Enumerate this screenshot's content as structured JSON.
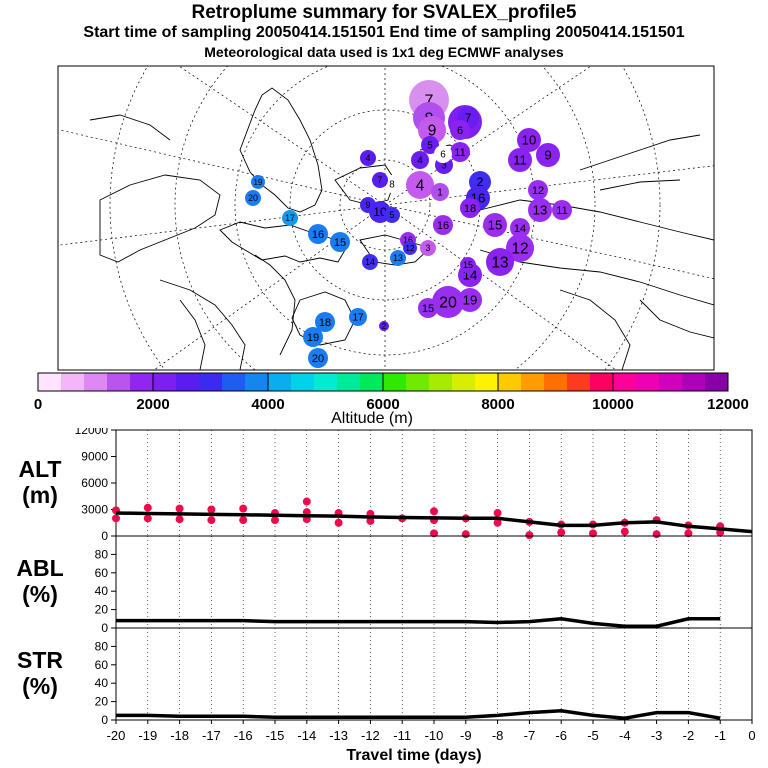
{
  "header": {
    "title": "Retroplume summary for SVALEX_profile5",
    "line2": "Start time of sampling 20050414.151501     End time of sampling 20050414.151501",
    "line3": "Meteorological data used is 1x1 deg ECMWF analyses"
  },
  "colorbar": {
    "label": "Altitude (m)",
    "ticks": [
      "0",
      "2000",
      "4000",
      "6000",
      "8000",
      "10000",
      "12000"
    ],
    "colors": [
      "#ffe4ff",
      "#f3b6f8",
      "#dd88f3",
      "#b955ee",
      "#9026f0",
      "#7d1ff0",
      "#5a1df0",
      "#3b2bf0",
      "#1f5df0",
      "#1486f0",
      "#0aaef0",
      "#00d2ea",
      "#00ebd1",
      "#00ea9b",
      "#00e95b",
      "#2fea00",
      "#6fea00",
      "#a7ec00",
      "#d8ee00",
      "#fdf300",
      "#ffc900",
      "#ff9d00",
      "#ff7000",
      "#ff3b1f",
      "#ff0060",
      "#ff0099",
      "#ee00b2",
      "#d000bc",
      "#ad00b8",
      "#8a00a8"
    ]
  },
  "map": {
    "markers": [
      {
        "label": "7",
        "color": "#d890ef"
      },
      {
        "label": "8",
        "color": "#b04fee"
      },
      {
        "label": "9",
        "color": "#c45bee"
      },
      {
        "label": "7",
        "color": "#8020f0"
      },
      {
        "label": "7",
        "color": "#6a1df0"
      },
      {
        "label": "6",
        "color": "#8a22f0"
      },
      {
        "label": "10",
        "color": "#8a22f0"
      },
      {
        "label": "9",
        "color": "#8a22f0"
      },
      {
        "label": "11",
        "color": "#8a22f0"
      },
      {
        "label": "5",
        "color": "#6a1df0"
      },
      {
        "label": "4",
        "color": "#6a1df0"
      },
      {
        "label": "11",
        "color": "#8a22f0"
      },
      {
        "label": "3",
        "color": "#6a1df0"
      },
      {
        "label": "4",
        "color": "#c45bee"
      },
      {
        "label": "1",
        "color": "#b04fee"
      },
      {
        "label": "2",
        "color": "#3f2ef0"
      },
      {
        "label": "16",
        "color": "#4a24f0"
      },
      {
        "label": "12",
        "color": "#9a2ef0"
      },
      {
        "label": "13",
        "color": "#9a2ef0"
      },
      {
        "label": "11",
        "color": "#9a2ef0"
      },
      {
        "label": "18",
        "color": "#8a22f0"
      },
      {
        "label": "15",
        "color": "#9a2ef0"
      },
      {
        "label": "14",
        "color": "#9a2ef0"
      },
      {
        "label": "12",
        "color": "#9a2ef0"
      },
      {
        "label": "16",
        "color": "#9a2ef0"
      },
      {
        "label": "13",
        "color": "#8a22f0"
      },
      {
        "label": "14",
        "color": "#8a22f0"
      },
      {
        "label": "15",
        "color": "#8a22f0"
      },
      {
        "label": "20",
        "color": "#9a2ef0"
      },
      {
        "label": "19",
        "color": "#9a2ef0"
      },
      {
        "label": "16",
        "color": "#9a2ef0"
      },
      {
        "label": "15",
        "color": "#9a2ef0"
      },
      {
        "label": "3",
        "color": "#c45bee"
      },
      {
        "label": "6",
        "color": "#ffffff"
      },
      {
        "label": "8",
        "color": "#ffffff"
      },
      {
        "label": "7",
        "color": "#5a1df0"
      },
      {
        "label": "10",
        "color": "#4a24f0"
      },
      {
        "label": "9",
        "color": "#4a24f0"
      },
      {
        "label": "5",
        "color": "#3f2ef0"
      },
      {
        "label": "4",
        "color": "#5a1df0"
      },
      {
        "label": "19",
        "color": "#1a7cf0"
      },
      {
        "label": "20",
        "color": "#1a7cf0"
      },
      {
        "label": "17",
        "color": "#1199f0"
      },
      {
        "label": "16",
        "color": "#1a7cf0"
      },
      {
        "label": "15",
        "color": "#1a7cf0"
      },
      {
        "label": "14",
        "color": "#3f2ef0"
      },
      {
        "label": "13",
        "color": "#1a7cf0"
      },
      {
        "label": "12",
        "color": "#3f2ef0"
      },
      {
        "label": "18",
        "color": "#1a7cf0"
      },
      {
        "label": "19",
        "color": "#1a7cf0"
      },
      {
        "label": "20",
        "color": "#1a7cf0"
      },
      {
        "label": "17",
        "color": "#1a7cf0"
      },
      {
        "label": "2",
        "color": "#5a1df0"
      }
    ]
  },
  "chart_data": [
    {
      "type": "line",
      "panel": "ALT",
      "ylabel": "ALT\n(m)",
      "ylabel_lines": [
        "ALT",
        "(m)"
      ],
      "ylim": [
        0,
        12000
      ],
      "yticks": [
        "0",
        "3000",
        "6000",
        "9000",
        "12000"
      ],
      "xlim": [
        -20,
        0
      ],
      "x": [
        -20,
        -19,
        -18,
        -17,
        -16,
        -15,
        -14,
        -13,
        -12,
        -11,
        -10,
        -9,
        -8,
        -7,
        -6,
        -5,
        -4,
        -3,
        -2,
        -1,
        0
      ],
      "y": [
        2600,
        2550,
        2500,
        2450,
        2400,
        2350,
        2300,
        2250,
        2150,
        2100,
        2050,
        2000,
        2000,
        1600,
        1200,
        1200,
        1500,
        1600,
        1100,
        800,
        500
      ],
      "particle_dots": [
        {
          "x": -20,
          "y": 2900
        },
        {
          "x": -20,
          "y": 2000
        },
        {
          "x": -19,
          "y": 3200
        },
        {
          "x": -19,
          "y": 2000
        },
        {
          "x": -18,
          "y": 3100
        },
        {
          "x": -18,
          "y": 1900
        },
        {
          "x": -17,
          "y": 3000
        },
        {
          "x": -17,
          "y": 1800
        },
        {
          "x": -16,
          "y": 3100
        },
        {
          "x": -16,
          "y": 1800
        },
        {
          "x": -15,
          "y": 2600
        },
        {
          "x": -15,
          "y": 1800
        },
        {
          "x": -14,
          "y": 3900
        },
        {
          "x": -14,
          "y": 2700
        },
        {
          "x": -14,
          "y": 1900
        },
        {
          "x": -13,
          "y": 2600
        },
        {
          "x": -13,
          "y": 1500
        },
        {
          "x": -12,
          "y": 2500
        },
        {
          "x": -12,
          "y": 1700
        },
        {
          "x": -11,
          "y": 2000
        },
        {
          "x": -10,
          "y": 2800
        },
        {
          "x": -10,
          "y": 1800
        },
        {
          "x": -10,
          "y": 300
        },
        {
          "x": -9,
          "y": 2000
        },
        {
          "x": -9,
          "y": 200
        },
        {
          "x": -8,
          "y": 2600
        },
        {
          "x": -8,
          "y": 1500
        },
        {
          "x": -7,
          "y": 1600
        },
        {
          "x": -7,
          "y": 100
        },
        {
          "x": -6,
          "y": 1300
        },
        {
          "x": -6,
          "y": 400
        },
        {
          "x": -5,
          "y": 1300
        },
        {
          "x": -5,
          "y": 300
        },
        {
          "x": -4,
          "y": 1500
        },
        {
          "x": -4,
          "y": 500
        },
        {
          "x": -3,
          "y": 1800
        },
        {
          "x": -3,
          "y": 200
        },
        {
          "x": -2,
          "y": 1200
        },
        {
          "x": -2,
          "y": 300
        },
        {
          "x": -1,
          "y": 1100
        },
        {
          "x": -1,
          "y": 400
        }
      ]
    },
    {
      "type": "line",
      "panel": "ABL",
      "ylabel": "ABL\n(%)",
      "ylabel_lines": [
        "ABL",
        "(%)"
      ],
      "ylim": [
        0,
        100
      ],
      "yticks": [
        "0",
        "20",
        "40",
        "60",
        "80"
      ],
      "xlim": [
        -20,
        0
      ],
      "x": [
        -20,
        -19,
        -18,
        -17,
        -16,
        -15,
        -14,
        -13,
        -12,
        -11,
        -10,
        -9,
        -8,
        -7,
        -6,
        -5,
        -4,
        -3,
        -2,
        -1
      ],
      "y": [
        8,
        8,
        8,
        8,
        8,
        7,
        7,
        7,
        7,
        7,
        7,
        7,
        6,
        7,
        10,
        5,
        2,
        2,
        10,
        10
      ]
    },
    {
      "type": "line",
      "panel": "STR",
      "ylabel": "STR\n(%)",
      "ylabel_lines": [
        "STR",
        "(%)"
      ],
      "ylim": [
        0,
        100
      ],
      "yticks": [
        "0",
        "20",
        "40",
        "60",
        "80"
      ],
      "xlim": [
        -20,
        0
      ],
      "xlabel": "Travel time (days)",
      "xticks": [
        "-20",
        "-19",
        "-18",
        "-17",
        "-16",
        "-15",
        "-14",
        "-13",
        "-12",
        "-11",
        "-10",
        "-9",
        "-8",
        "-7",
        "-6",
        "-5",
        "-4",
        "-3",
        "-2",
        "-1",
        "0"
      ],
      "x": [
        -20,
        -19,
        -18,
        -17,
        -16,
        -15,
        -14,
        -13,
        -12,
        -11,
        -10,
        -9,
        -8,
        -7,
        -6,
        -5,
        -4,
        -3,
        -2,
        -1
      ],
      "y": [
        5,
        5,
        4,
        4,
        4,
        3,
        3,
        3,
        3,
        3,
        3,
        3,
        5,
        8,
        10,
        5,
        2,
        8,
        8,
        2
      ]
    }
  ]
}
